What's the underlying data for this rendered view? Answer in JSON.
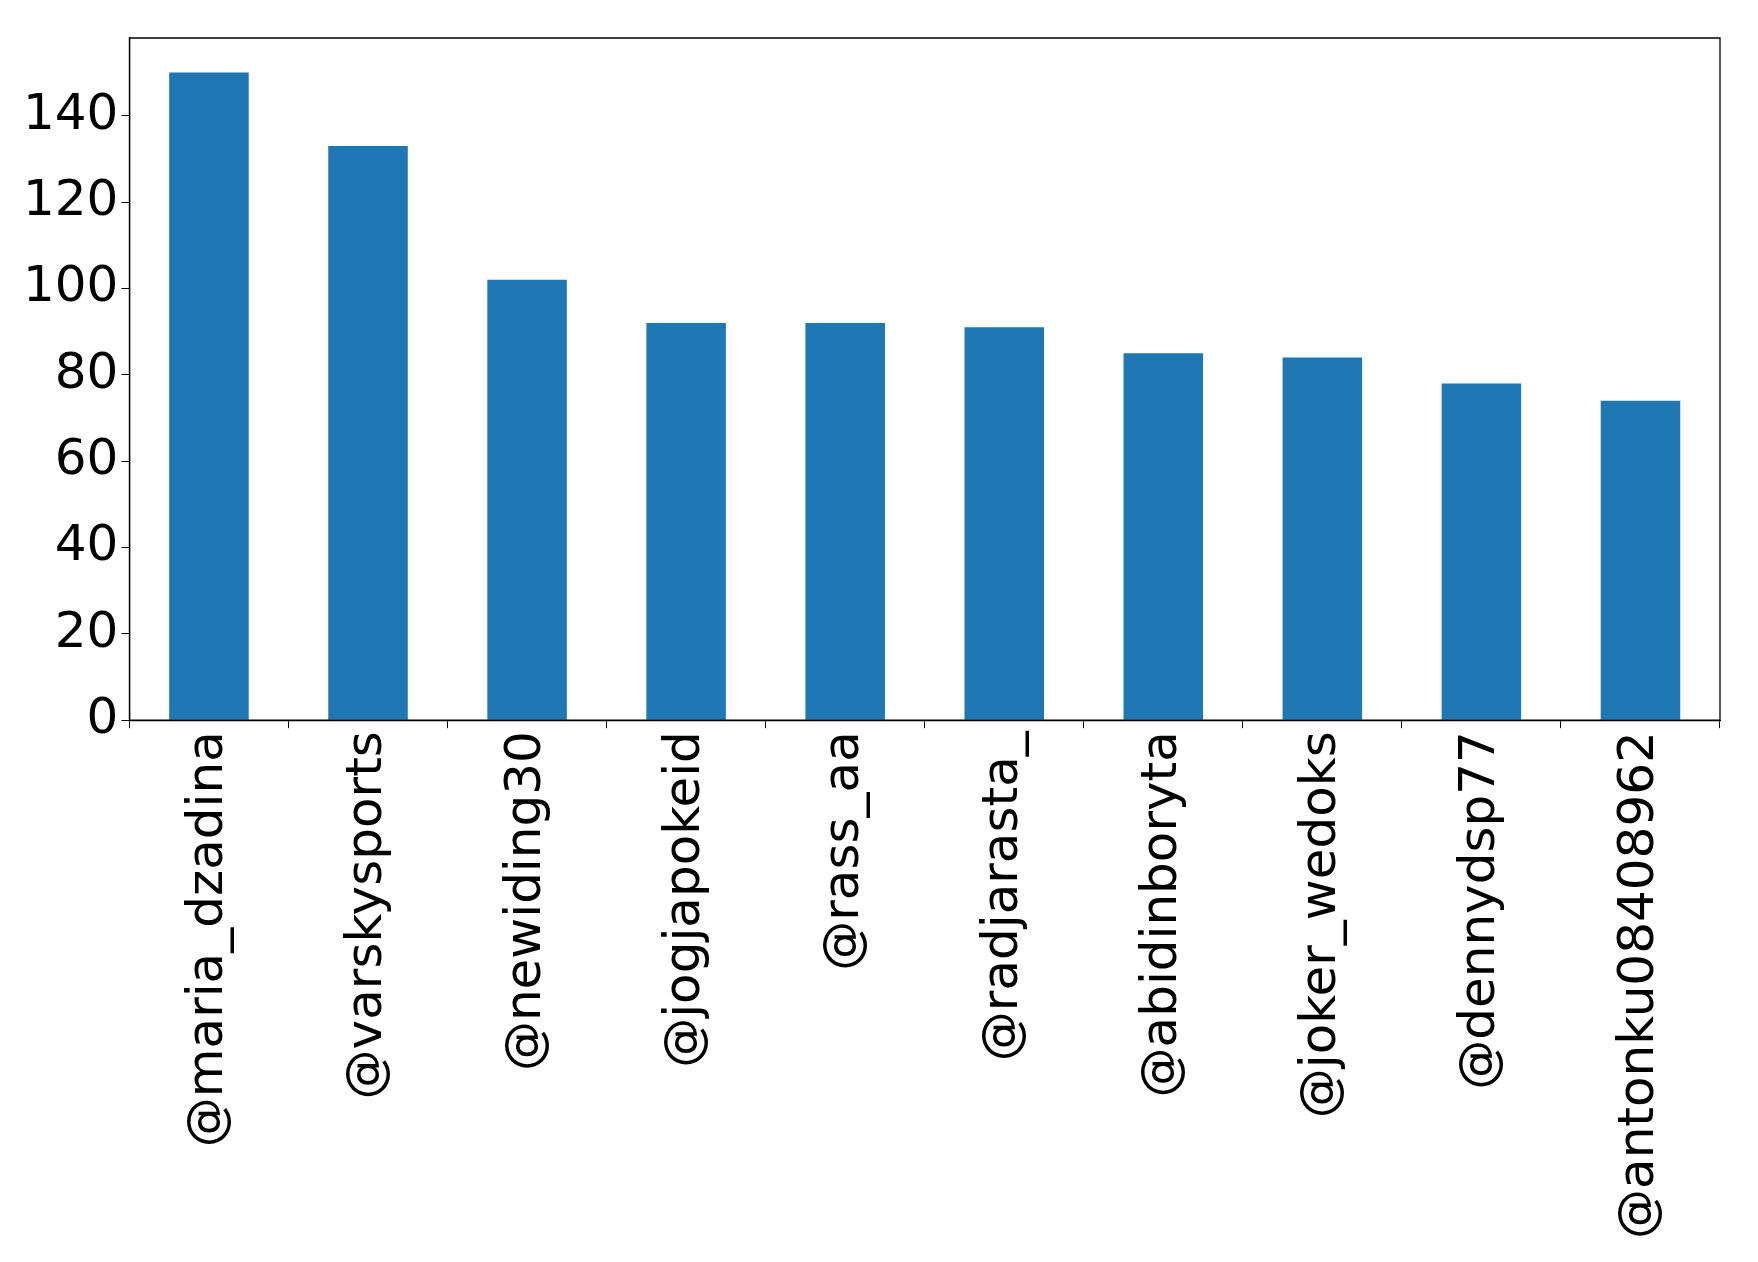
{
  "chart_data": {
    "type": "bar",
    "categories": [
      "@maria_dzadina",
      "@varskysports",
      "@newiding30",
      "@jogjapokeid",
      "@rass_aa",
      "@radjarasta_",
      "@abidinboryta",
      "@joker_wedoks",
      "@dennydsp77",
      "@antonku08408962"
    ],
    "values": [
      150,
      133,
      102,
      92,
      92,
      91,
      85,
      84,
      78,
      74
    ],
    "color": "#1f77b4",
    "ylim": [
      0,
      158
    ],
    "yticks": [
      0,
      20,
      40,
      60,
      80,
      100,
      120,
      140
    ],
    "grid": false,
    "legend": false
  }
}
